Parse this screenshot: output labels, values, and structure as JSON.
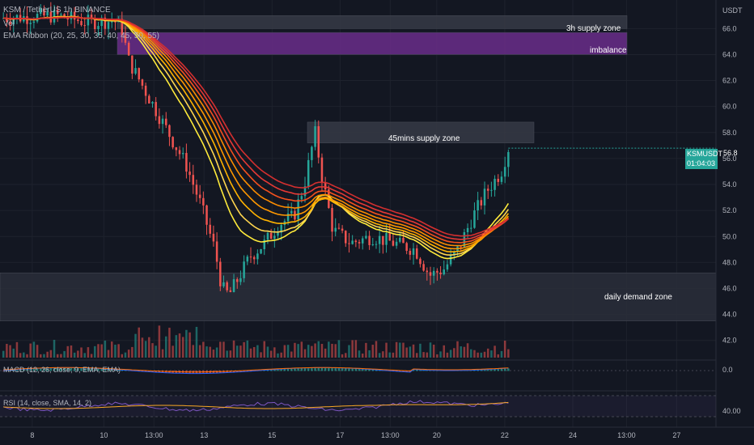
{
  "header": {
    "symbol_line": "KSM / TetherUS  1h  BINANCE",
    "vol_label": "Vol",
    "ema_label": "EMA Ribbon (20, 25, 30, 35, 40, 45, 50, 55)"
  },
  "colors": {
    "background": "#131722",
    "bull": "#26a69a",
    "bear": "#ef5350",
    "supply_zone": "#363a45",
    "imbalance": "#6a2d8a",
    "price_tag": "#26a69a",
    "ribbon_start": "#ffeb3b",
    "ribbon_end": "#e53935"
  },
  "zones": {
    "supply_3h": "3h supply zone",
    "imbalance": "imbalance",
    "supply_45m": "45mins supply zone",
    "demand_daily": "daily demand zone"
  },
  "price_tag": {
    "symbol": "KSMUSDT",
    "price": "56.8",
    "countdown": "01:04:03"
  },
  "axis": {
    "currency": "USDT",
    "macd_zero": "0.0",
    "rsi_level": "40.00"
  },
  "indicators": {
    "macd_label": "MACD (12, 26, close, 9, EMA, EMA)",
    "rsi_label": "RSI (14, close, SMA, 14, 2)"
  },
  "chart_data": {
    "type": "candlestick",
    "y_ticks": [
      42.0,
      44.0,
      46.0,
      48.0,
      50.0,
      52.0,
      54.0,
      56.0,
      58.0,
      60.0,
      62.0,
      64.0,
      66.0
    ],
    "ylim": [
      40.8,
      68.2
    ],
    "x_ticks": [
      "8",
      "10",
      "13:00",
      "13",
      "15",
      "17",
      "13:00",
      "20",
      "22",
      "24",
      "13:00",
      "27"
    ],
    "zones": [
      {
        "name": "3h supply zone",
        "low": 66.0,
        "high": 67.0
      },
      {
        "name": "imbalance",
        "low": 64.0,
        "high": 65.7
      },
      {
        "name": "45mins supply zone",
        "low": 57.2,
        "high": 58.8
      },
      {
        "name": "daily demand zone",
        "low": 43.5,
        "high": 47.2
      }
    ],
    "price_path": [
      [
        0.0,
        66.8
      ],
      [
        0.08,
        67.0
      ],
      [
        0.12,
        66.5
      ],
      [
        0.16,
        66.6
      ],
      [
        0.17,
        66.0
      ],
      [
        0.18,
        63.5
      ],
      [
        0.2,
        61.5
      ],
      [
        0.22,
        59.5
      ],
      [
        0.24,
        57.5
      ],
      [
        0.26,
        55.5
      ],
      [
        0.28,
        52.5
      ],
      [
        0.3,
        49.0
      ],
      [
        0.31,
        46.0
      ],
      [
        0.32,
        45.5
      ],
      [
        0.335,
        47.0
      ],
      [
        0.35,
        48.5
      ],
      [
        0.37,
        49.5
      ],
      [
        0.39,
        51.0
      ],
      [
        0.41,
        51.5
      ],
      [
        0.425,
        54.0
      ],
      [
        0.44,
        58.0
      ],
      [
        0.45,
        54.5
      ],
      [
        0.465,
        50.5
      ],
      [
        0.49,
        49.5
      ],
      [
        0.52,
        50.0
      ],
      [
        0.55,
        49.5
      ],
      [
        0.58,
        49.0
      ],
      [
        0.6,
        47.0
      ],
      [
        0.62,
        47.5
      ],
      [
        0.64,
        49.0
      ],
      [
        0.66,
        51.5
      ],
      [
        0.68,
        53.5
      ],
      [
        0.7,
        55.0
      ],
      [
        0.71,
        56.8
      ]
    ],
    "ema_ribbon_periods": [
      20,
      25,
      30,
      35,
      40,
      45,
      50,
      55
    ]
  }
}
